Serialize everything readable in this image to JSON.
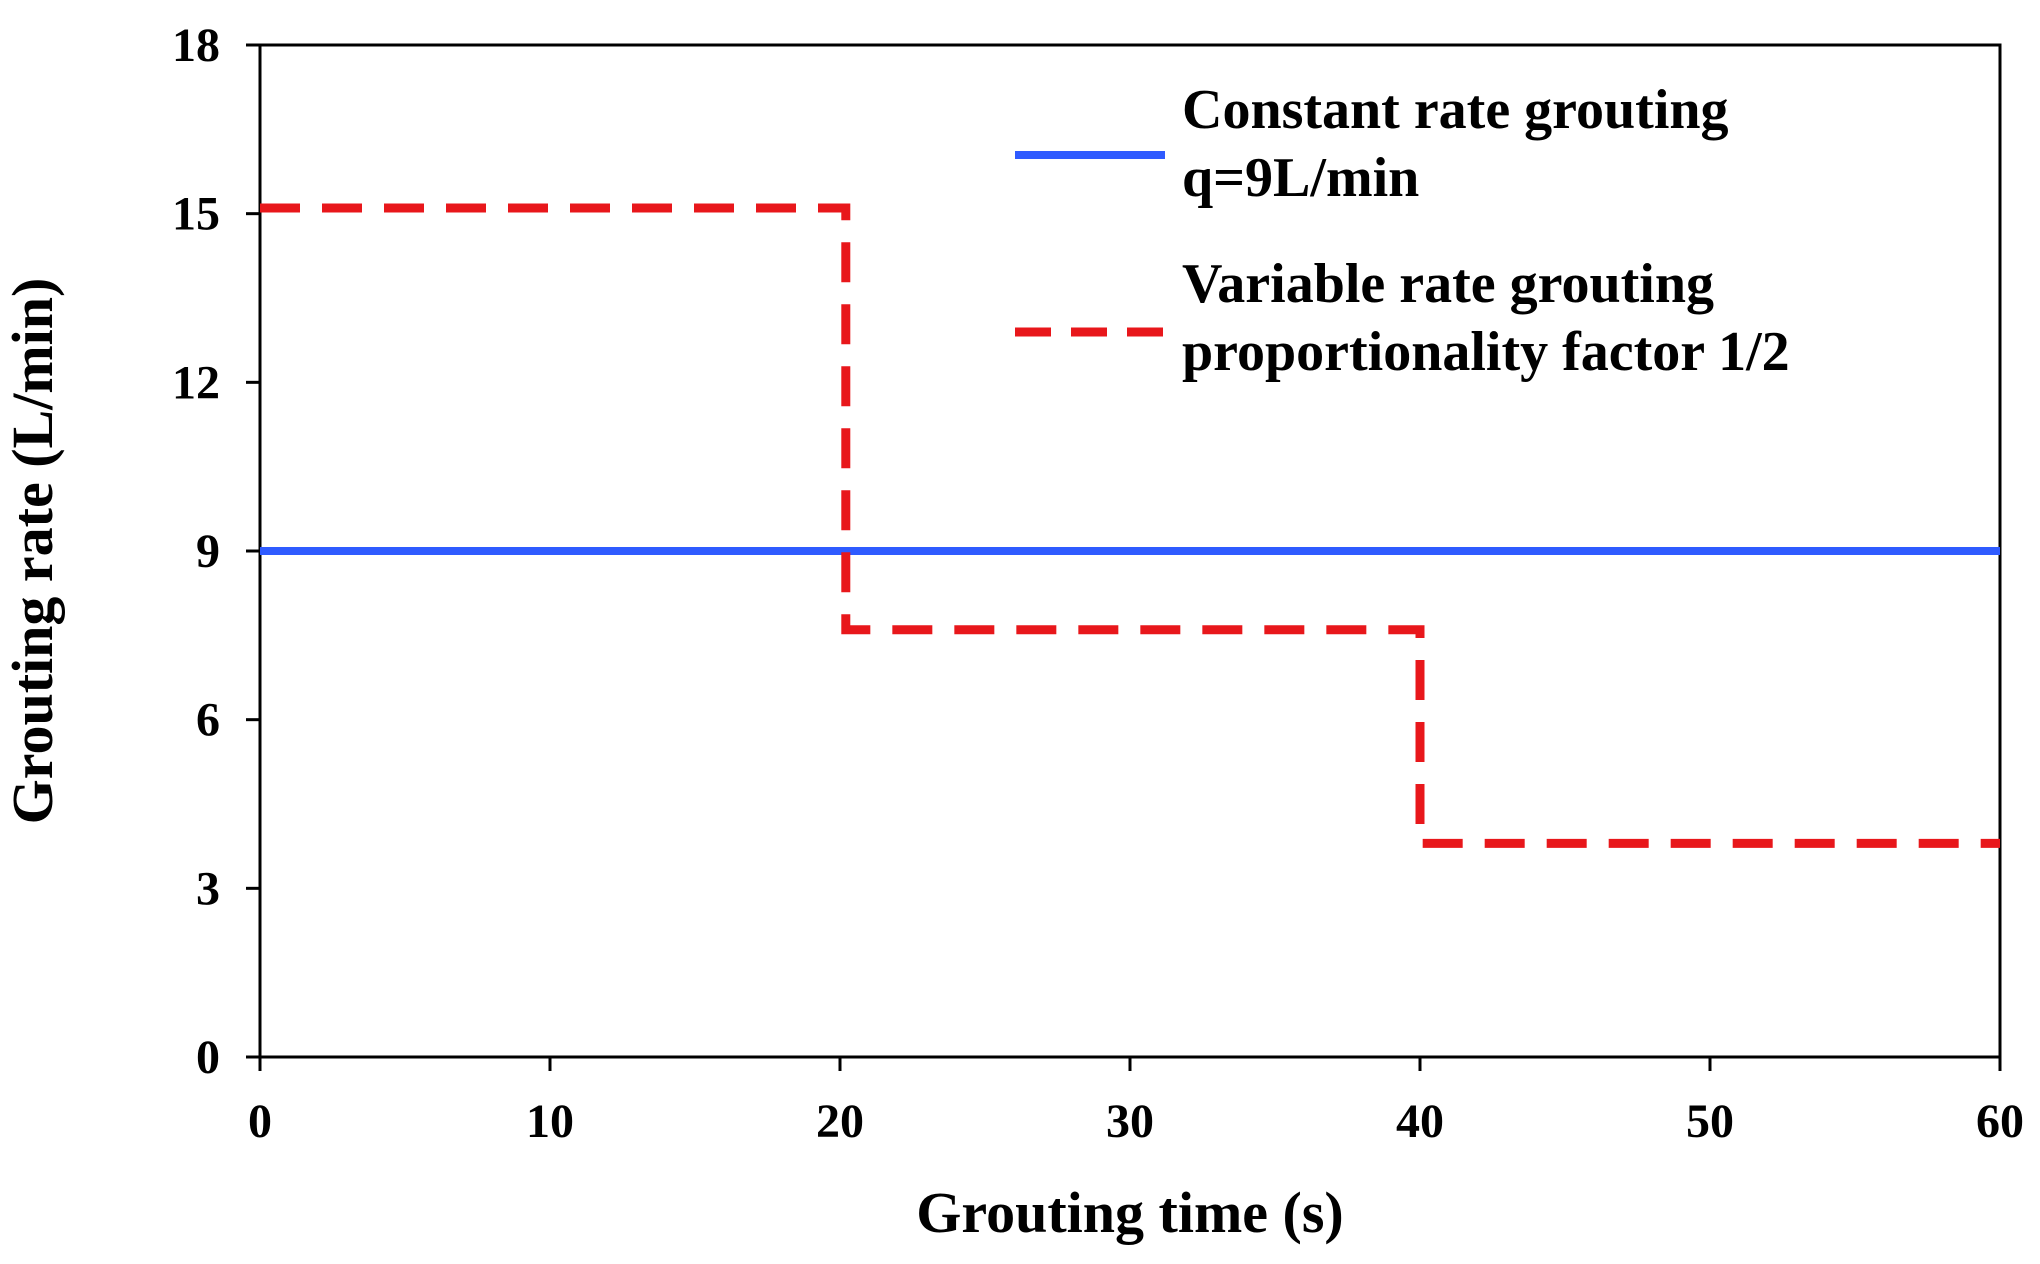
{
  "chart_data": {
    "type": "line",
    "title": "",
    "xlabel": "Grouting time (s)",
    "ylabel": "Grouting rate (L/min)",
    "xlim": [
      0,
      60
    ],
    "ylim": [
      0,
      18
    ],
    "x_ticks": [
      0,
      10,
      20,
      30,
      40,
      50,
      60
    ],
    "y_ticks": [
      0,
      3,
      6,
      9,
      12,
      15,
      18
    ],
    "x_tick_labels": [
      "0",
      "10",
      "20",
      "30",
      "40",
      "50",
      "60"
    ],
    "y_tick_labels": [
      "0",
      "3",
      "6",
      "9",
      "12",
      "15",
      "18"
    ],
    "grid": false,
    "legend_position": "top-right",
    "series": [
      {
        "name": "Constant rate grouting",
        "legend_lines": [
          "Constant rate grouting",
          "q=9L/min"
        ],
        "style": "solid",
        "color": "#2f5bff",
        "x": [
          0,
          60
        ],
        "y": [
          9,
          9
        ]
      },
      {
        "name": "Variable rate grouting",
        "legend_lines": [
          "Variable rate grouting",
          "proportionality factor 1/2"
        ],
        "style": "dashed",
        "color": "#e8171b",
        "x": [
          0,
          20.2,
          20.2,
          40,
          40,
          60
        ],
        "y": [
          15.1,
          15.1,
          7.6,
          7.6,
          3.8,
          3.8
        ]
      }
    ]
  }
}
